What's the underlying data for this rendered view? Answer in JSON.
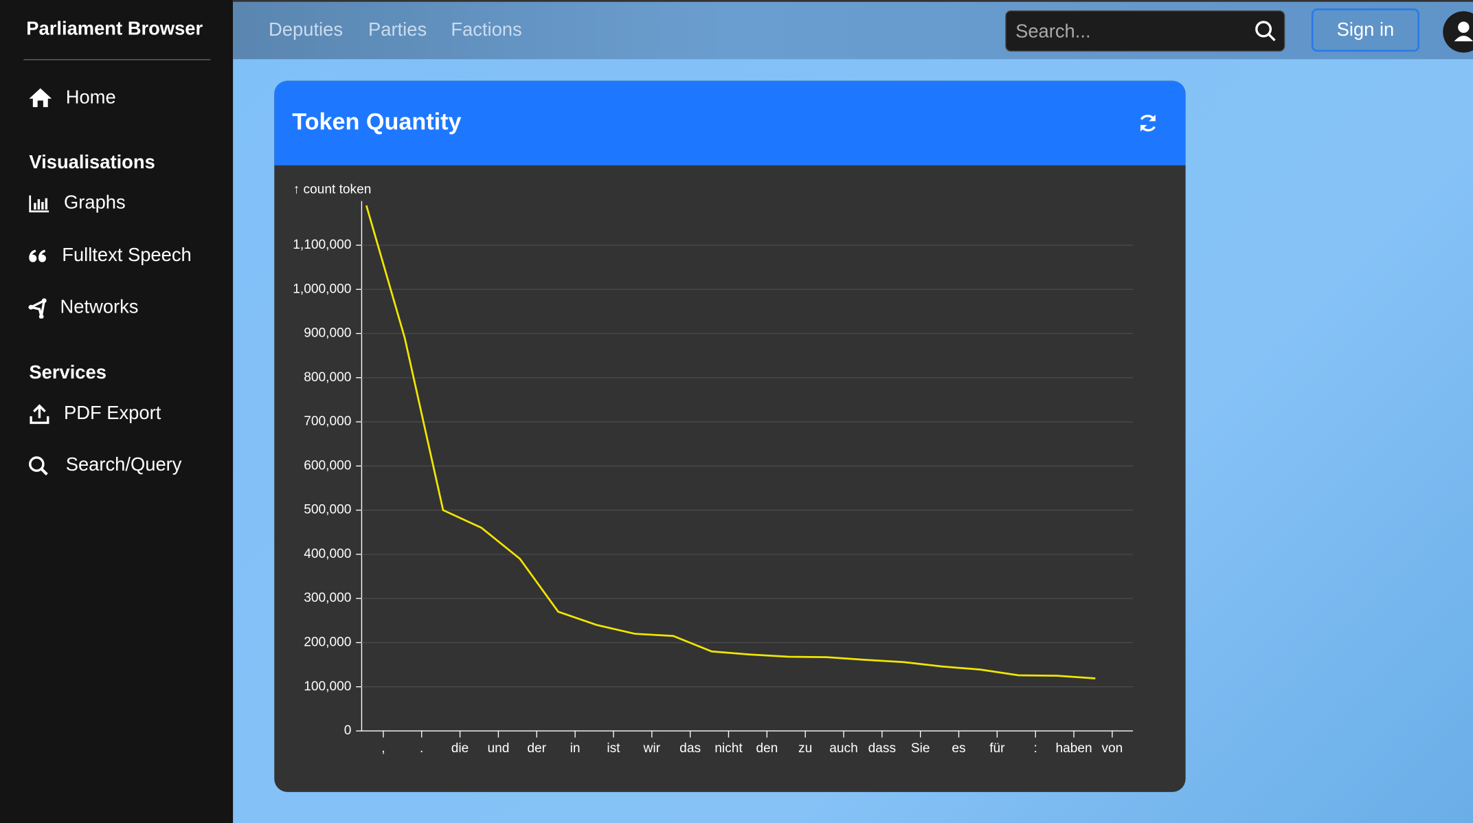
{
  "sidebar": {
    "brand": "Parliament Browser",
    "home": "Home",
    "sections": [
      {
        "title": "Visualisations",
        "items": [
          "Graphs",
          "Fulltext Speech",
          "Networks"
        ]
      },
      {
        "title": "Services",
        "items": [
          "PDF Export",
          "Search/Query"
        ]
      }
    ]
  },
  "topbar": {
    "links": [
      "Deputies",
      "Parties",
      "Factions"
    ],
    "search_placeholder": "Search...",
    "sign_in": "Sign in"
  },
  "card": {
    "title": "Token Quantity"
  },
  "chart_data": {
    "type": "line",
    "y_label": "↑ count token",
    "categories": [
      ",",
      ".",
      "die",
      "und",
      "der",
      "in",
      "ist",
      "wir",
      "das",
      "nicht",
      "den",
      "zu",
      "auch",
      "dass",
      "Sie",
      "es",
      "für",
      ":",
      "haben",
      "von"
    ],
    "series": [
      {
        "name": "count token",
        "color": "#f2e600",
        "values": [
          1190000,
          890000,
          500000,
          460000,
          390000,
          270000,
          240000,
          220000,
          215000,
          180000,
          173000,
          168000,
          167000,
          161000,
          156000,
          146000,
          139000,
          126000,
          125000,
          119000
        ]
      }
    ],
    "ylim": [
      0,
      1200000
    ],
    "yticks": [
      0,
      {
        "value": 100000,
        "label": "100,000"
      },
      {
        "value": 200000,
        "label": "200,000"
      },
      {
        "value": 300000,
        "label": "300,000"
      },
      {
        "value": 400000,
        "label": "400,000"
      },
      {
        "value": 500000,
        "label": "500,000"
      },
      {
        "value": 600000,
        "label": "600,000"
      },
      {
        "value": 700000,
        "label": "700,000"
      },
      {
        "value": 800000,
        "label": "800,000"
      },
      {
        "value": 900000,
        "label": "900,000"
      },
      {
        "value": 1000000,
        "label": "1,000,000"
      },
      {
        "value": 1100000,
        "label": "1,100,000"
      }
    ],
    "grid": true
  }
}
